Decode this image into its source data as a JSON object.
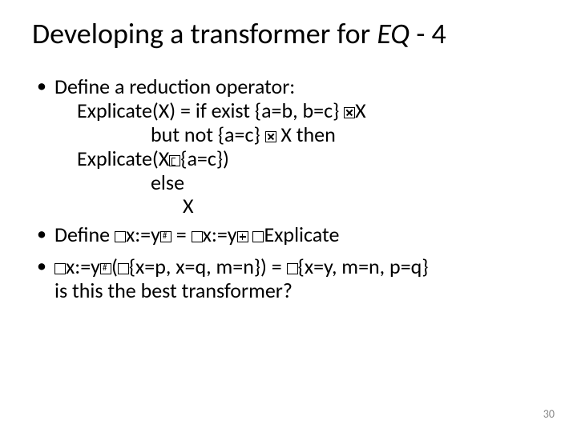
{
  "slide": {
    "title_prefix": "Developing a transformer for ",
    "title_eq": "EQ",
    "title_suffix": " - 4",
    "page_number": "30",
    "background_color": "#ffffff",
    "text_color": "#000000",
    "pagenum_color": "#888888",
    "title_fontsize": 36,
    "body_fontsize": 26
  },
  "bullets": {
    "b1": {
      "l1": "Define a reduction operator:",
      "l2a": "Explicate(X) = if exist {a=b, b=c}",
      "l2b": "X",
      "l3a": "but not {a=c} ",
      "l3b": "X then",
      "l4a": " Explicate(X",
      "l4b": "{a=c})",
      "l5": "else",
      "l6": "X"
    },
    "b2": {
      "p1": "Define ",
      "p2": "x",
      "p3": ":=y",
      "p4": "  = ",
      "p5": "x",
      "p6": ":=y",
      "p7": " ",
      "p8": "Explicate"
    },
    "b3": {
      "p1": "x",
      "p2": ":=y",
      "p3": "(",
      "p4": "{x=p, x=q, m=n}) = ",
      "p5": "{x=y, m=n, p=q}",
      "q": "is this the best transformer?"
    }
  }
}
